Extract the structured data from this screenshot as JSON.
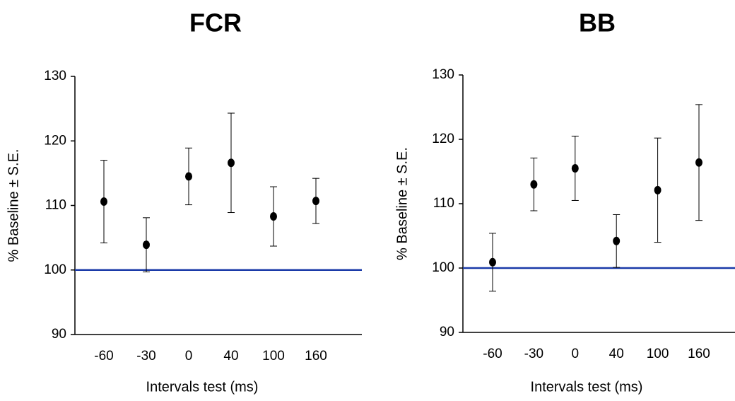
{
  "chart_data": [
    {
      "type": "errorscatter",
      "title": "FCR",
      "x_label": "Intervals test (ms)",
      "y_label": "% Baseline ± S.E.",
      "categories": [
        "-60",
        "-30",
        "0",
        "40",
        "100",
        "160"
      ],
      "values": [
        110.6,
        103.9,
        114.5,
        116.6,
        108.3,
        110.7
      ],
      "errors": [
        6.4,
        4.2,
        4.4,
        7.7,
        4.6,
        3.5
      ],
      "color": "#000000",
      "ylim": [
        90,
        130
      ],
      "yticks": [
        90,
        100,
        110,
        120,
        130
      ],
      "reference_line": {
        "value": 100,
        "color": "#1a3aa8"
      }
    },
    {
      "type": "errorscatter",
      "title": "BB",
      "x_label": "Intervals test (ms)",
      "y_label": "% Baseline ± S.E.",
      "categories": [
        "-60",
        "-30",
        "0",
        "40",
        "100",
        "160"
      ],
      "values": [
        100.9,
        113.0,
        115.5,
        104.2,
        112.1,
        116.4
      ],
      "errors": [
        4.5,
        4.1,
        5.0,
        4.1,
        8.1,
        9.0
      ],
      "color": "#000000",
      "ylim": [
        90,
        130
      ],
      "yticks": [
        90,
        100,
        110,
        120,
        130
      ],
      "reference_line": {
        "value": 100,
        "color": "#1a3aa8"
      }
    }
  ]
}
